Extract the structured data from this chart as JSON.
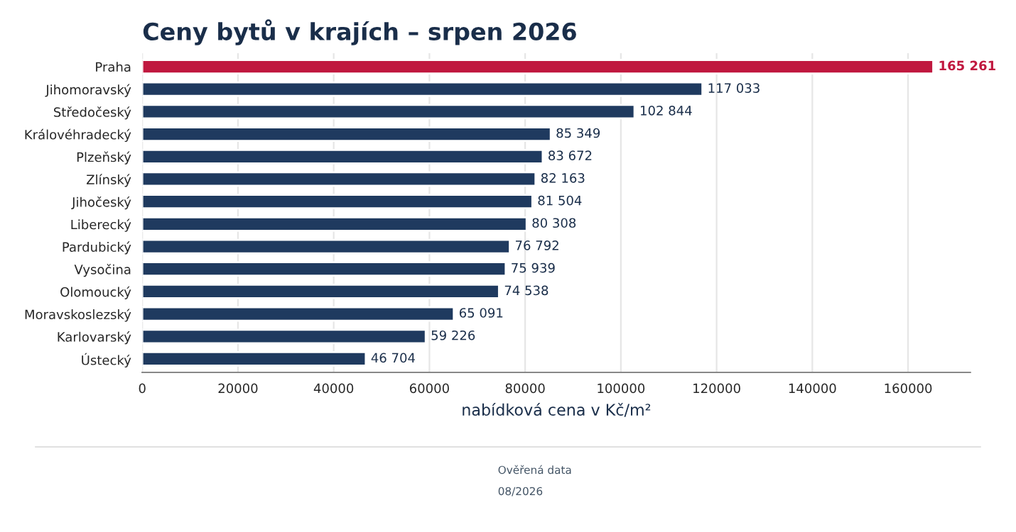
{
  "chart_data": {
    "type": "bar",
    "orientation": "horizontal",
    "title": "Ceny bytů v krajích – srpen 2026",
    "xlabel": "nabídková cena v Kč/m²",
    "categories": [
      "Praha",
      "Jihomoravský",
      "Středočeský",
      "Královéhradecký",
      "Plzeňský",
      "Zlínský",
      "Jihočeský",
      "Liberecký",
      "Pardubický",
      "Vysočina",
      "Olomoucký",
      "Moravskoslezský",
      "Karlovarský",
      "Ústecký"
    ],
    "values": [
      165261,
      117033,
      102844,
      85349,
      83672,
      82163,
      81504,
      80308,
      76792,
      75939,
      74538,
      65091,
      59226,
      46704
    ],
    "value_labels": [
      "165 261",
      "117 033",
      "102 844",
      "85 349",
      "83 672",
      "82 163",
      "81 504",
      "80 308",
      "76 792",
      "75 939",
      "74 538",
      "65 091",
      "59 226",
      "46 704"
    ],
    "colors": [
      "#c0183f",
      "#1f3a5f",
      "#1f3a5f",
      "#1f3a5f",
      "#1f3a5f",
      "#1f3a5f",
      "#1f3a5f",
      "#1f3a5f",
      "#1f3a5f",
      "#1f3a5f",
      "#1f3a5f",
      "#1f3a5f",
      "#1f3a5f",
      "#1f3a5f"
    ],
    "xlim": [
      0,
      173000
    ],
    "xticks": [
      0,
      20000,
      40000,
      60000,
      80000,
      100000,
      120000,
      140000,
      160000
    ],
    "grid": "x",
    "annotations": [
      "Ověřená data",
      "08/2026"
    ]
  }
}
